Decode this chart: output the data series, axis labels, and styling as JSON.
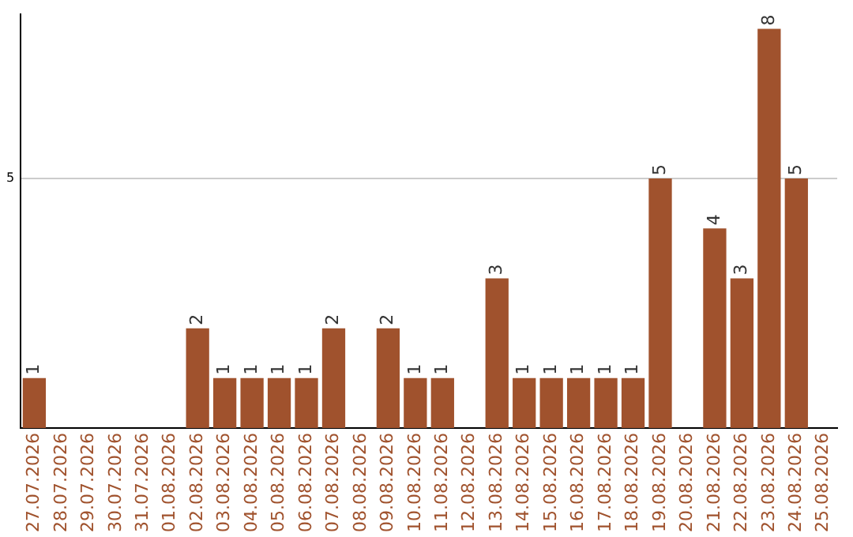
{
  "chart_data": {
    "type": "bar",
    "categories": [
      "27.07.2026",
      "28.07.2026",
      "29.07.2026",
      "30.07.2026",
      "31.07.2026",
      "01.08.2026",
      "02.08.2026",
      "03.08.2026",
      "04.08.2026",
      "05.08.2026",
      "06.08.2026",
      "07.08.2026",
      "08.08.2026",
      "09.08.2026",
      "10.08.2026",
      "11.08.2026",
      "12.08.2026",
      "13.08.2026",
      "14.08.2026",
      "15.08.2026",
      "16.08.2026",
      "17.08.2026",
      "18.08.2026",
      "19.08.2026",
      "20.08.2026",
      "21.08.2026",
      "22.08.2026",
      "23.08.2026",
      "24.08.2026",
      "25.08.2026"
    ],
    "values": [
      1,
      0,
      0,
      0,
      0,
      0,
      2,
      1,
      1,
      1,
      1,
      2,
      0,
      2,
      1,
      1,
      0,
      3,
      1,
      1,
      1,
      1,
      1,
      5,
      0,
      4,
      3,
      8,
      5,
      0
    ],
    "value_labels": [
      "1",
      null,
      null,
      null,
      null,
      null,
      "2",
      "1",
      "1",
      "1",
      "1",
      "2",
      null,
      "2",
      "1",
      "1",
      null,
      "3",
      "1",
      "1",
      "1",
      "1",
      "1",
      "5",
      null,
      "4",
      "3",
      "8",
      "5",
      null
    ],
    "color": "#a0522d",
    "ylim": [
      0,
      8.3
    ],
    "yticks": [
      5
    ],
    "grid": "y",
    "legend": false
  }
}
